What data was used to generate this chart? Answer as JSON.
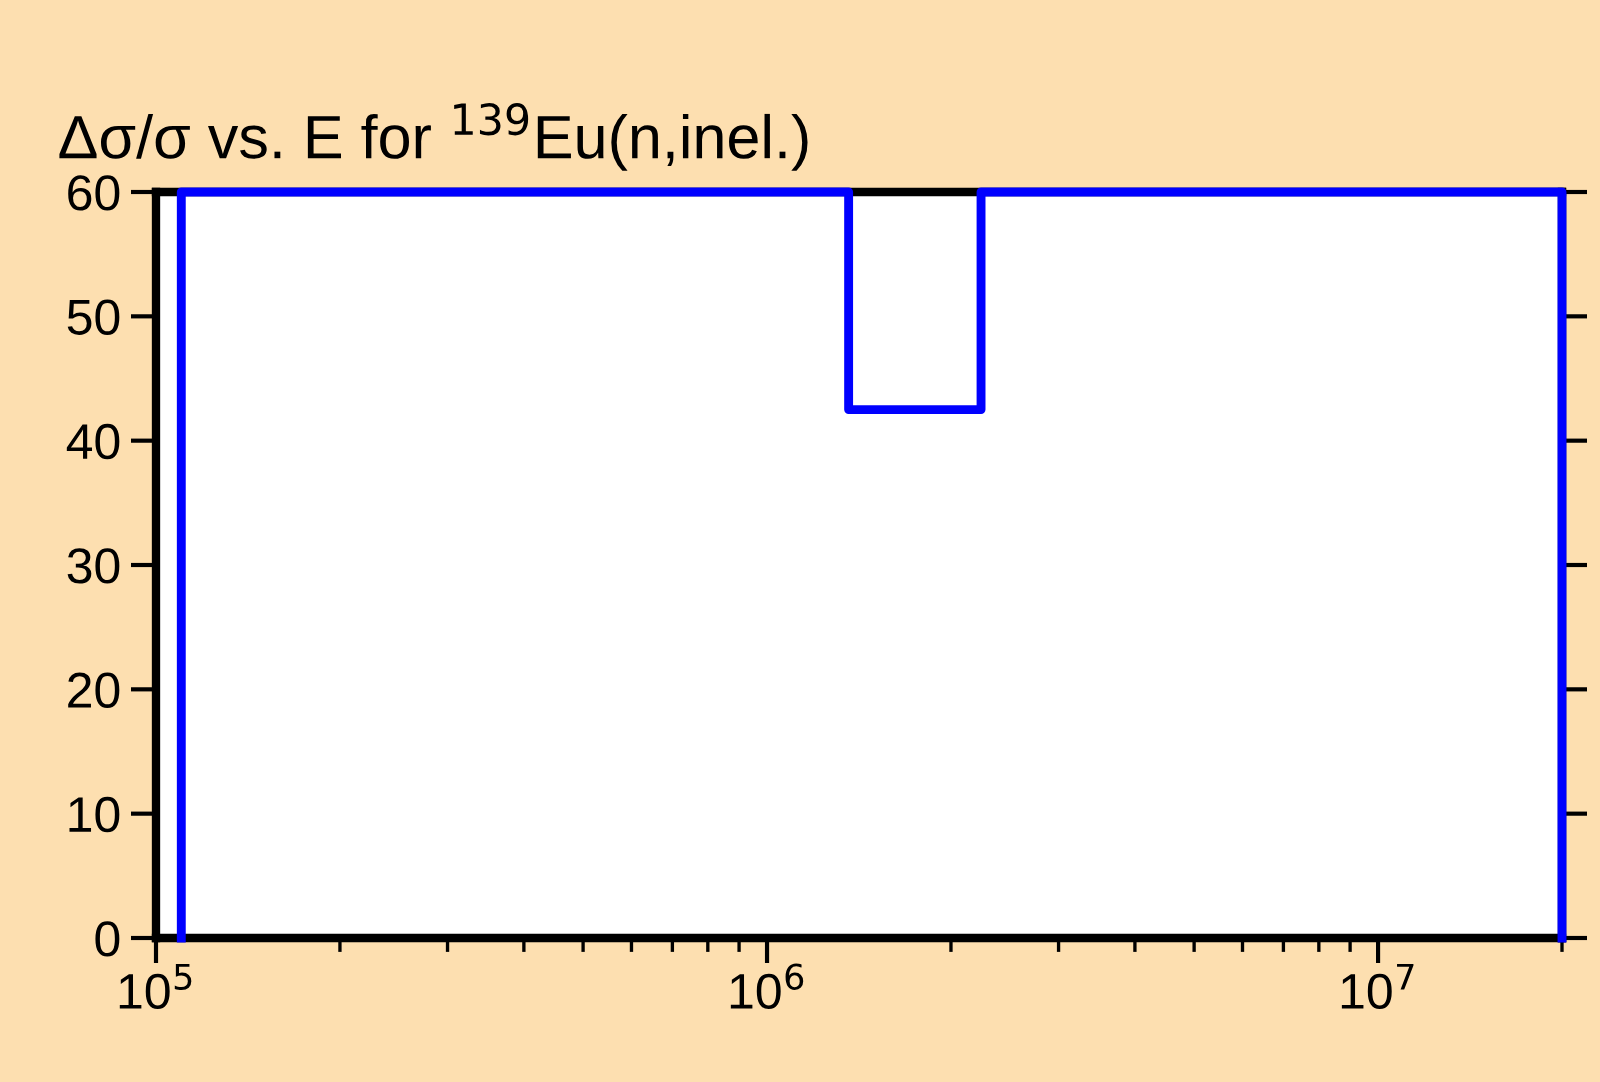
{
  "chart_data": {
    "type": "line",
    "title": "Δσ/σ vs. E for $^{139}$Eu(n,inel.)",
    "log": "x",
    "x": [
      110000,
      110000,
      1360000,
      1360000,
      2240000,
      2240000,
      20000000,
      20000000
    ],
    "series": [
      {
        "color": "#0000ff",
        "values": [
          0,
          60,
          60,
          42.5,
          42.5,
          60,
          60,
          0
        ]
      }
    ],
    "xlim": [
      100000,
      20000000
    ],
    "xticks": [
      {
        "value": 100000,
        "label": "10$^{5}$"
      },
      {
        "value": 1000000,
        "label": "10$^{6}$"
      },
      {
        "value": 10000000,
        "label": "10$^{7}$"
      }
    ],
    "ylim": [
      0,
      60
    ],
    "yticks": [
      0,
      10,
      20,
      30,
      40,
      50,
      60
    ],
    "grid": false,
    "legend": false,
    "marker": "none",
    "line_style": "solid"
  }
}
